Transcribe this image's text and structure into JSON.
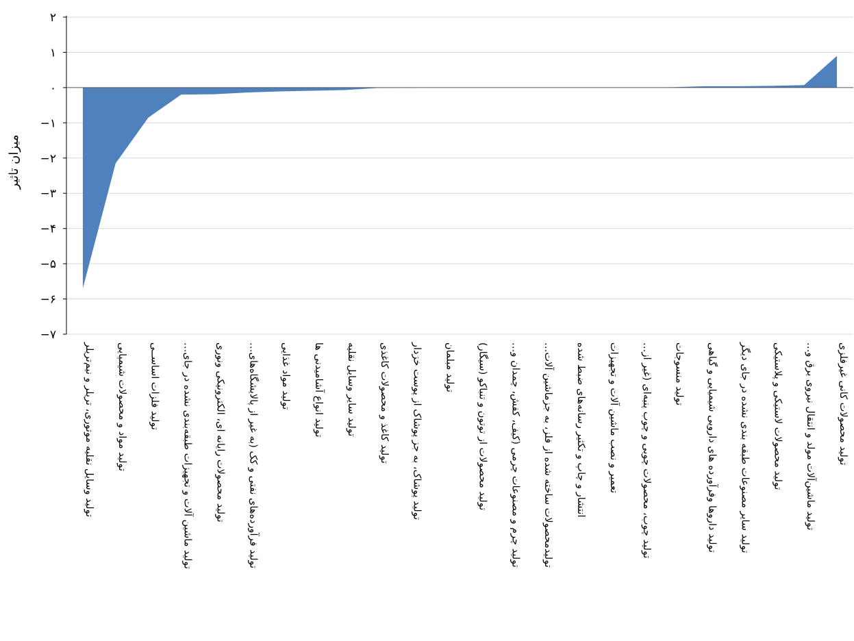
{
  "chart_data": {
    "type": "area",
    "title": "",
    "xlabel": "",
    "ylabel": "میزان تاثیر",
    "ylim": [
      -7,
      2
    ],
    "yticks": [
      2,
      1,
      0,
      -1,
      -2,
      -3,
      -4,
      -5,
      -6,
      -7
    ],
    "ytick_labels": [
      "۲",
      "۱",
      "۰",
      "−۱",
      "−۲",
      "−۳",
      "−۴",
      "−۵",
      "−۶",
      "−۷"
    ],
    "grid": true,
    "legend": "none",
    "color": "#4f81bd",
    "categories": [
      "تولید وسایل نقلیه موتوری، تریلر و نیم‌تریلر",
      "تولید مواد و محصولات شیمیایی",
      "تولید فلزات اساســی",
      "تولید ماشین آلات و تجهیزات طبقه‌بندی نشده در جای…",
      "تولید محصولات رایانه ای، الکترونیکی ونوری",
      "تولید فرآورده‌های نفتی و کک (به غیر از پالایشگاه‌های…",
      "تولید مواد غذایی",
      "تولید انواع آشامیدنی ها",
      "تولید سایر وسایل نقلیه",
      "تولید کاغذ و محصولات کاغذی",
      "تولید پوشاک، به جز پوشاک از پوست خزدار",
      "تولید مبلمان",
      "تولید محصولات از توتون و تنباکو (سیگار)",
      "تولید چرم و مصنوعات چرمی (کیف، کفش، چمدان و…",
      "تولیدمحصولات ساخته شده از فلز، به جزماشین آلات…",
      "انتشار و چاپ و تکثیر رسانه‌های ضبط شده",
      "تعمیر و نصب ماشین آلات و تجهیزات",
      "تولید چوب، محصولات چوبی و چوب پنبه‌ای (غیر از…",
      "تولید منسوجات",
      "تولید داروها وفرآورده های دارویی شیمیایی و گیاهی",
      "تولید سایر مصنوعات طبقه بندی نشده در جای دیگر",
      "تولید محصولات لاستیکی و پلاستیکی",
      "تولید ماشین‌آلات مولد و انتقال نیروی برق و…",
      "تولید محصولات کانی غیرفلزی"
    ],
    "values": [
      -5.7,
      -2.15,
      -0.85,
      -0.2,
      -0.19,
      -0.14,
      -0.11,
      -0.09,
      -0.07,
      -0.01,
      -0.005,
      0,
      0,
      0,
      0,
      0,
      0,
      0,
      0.01,
      0.04,
      0.04,
      0.05,
      0.07,
      0.9
    ]
  }
}
